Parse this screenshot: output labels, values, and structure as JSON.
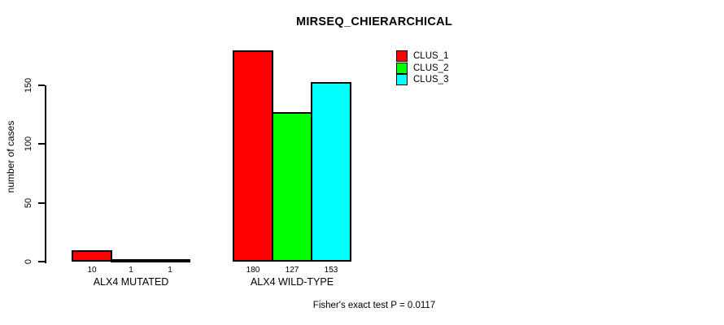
{
  "chart_data": {
    "type": "bar",
    "title": "MIRSEQ_CHIERARCHICAL",
    "xlabel": "",
    "ylabel": "number of cases",
    "ylim": [
      0,
      186
    ],
    "yticks": [
      0,
      50,
      100,
      150
    ],
    "grid": false,
    "categories": [
      "ALX4 MUTATED",
      "ALX4 WILD-TYPE"
    ],
    "series": [
      {
        "name": "CLUS_1",
        "color": "#ff0000",
        "values": [
          10,
          180
        ]
      },
      {
        "name": "CLUS_2",
        "color": "#00ff00",
        "values": [
          1,
          127
        ]
      },
      {
        "name": "CLUS_3",
        "color": "#00ffff",
        "values": [
          1,
          153
        ]
      }
    ],
    "bar_value_labels": [
      [
        "10",
        "1",
        "1"
      ],
      [
        "180",
        "127",
        "153"
      ]
    ],
    "legend_position": "top-right",
    "footnote": "Fisher's exact test P = 0.0117"
  },
  "colors": {
    "background": "#ffffff",
    "axis": "#000000",
    "text": "#000000"
  }
}
